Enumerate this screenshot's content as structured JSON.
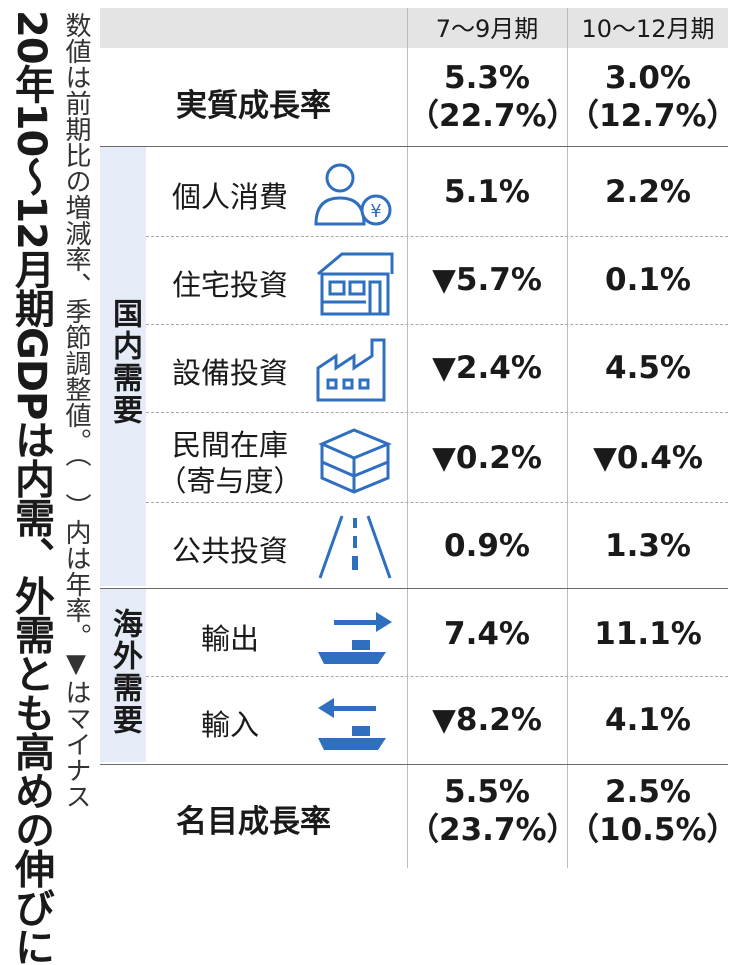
{
  "title": "20年10～12月期GDPは内需、外需とも高めの伸びに",
  "note": "数値は前期比の増減率、季節調整値。（　）内は年率。▼はマイナス",
  "columns": [
    "7～9月期",
    "10～12月期"
  ],
  "real_growth": {
    "label": "実質成長率",
    "q3": "5.3%",
    "q3_annual": "（22.7%）",
    "q4": "3.0%",
    "q4_annual": "（12.7%）"
  },
  "domestic": {
    "group_label": "国内需要",
    "rows": [
      {
        "label": "個人消費",
        "q3": "5.1%",
        "q4": "2.2%",
        "icon": "person-yen-icon"
      },
      {
        "label": "住宅投資",
        "q3": "▼5.7%",
        "q4": "0.1%",
        "icon": "house-icon"
      },
      {
        "label": "設備投資",
        "q3": "▼2.4%",
        "q4": "4.5%",
        "icon": "factory-icon"
      },
      {
        "label": "民間在庫",
        "label2": "（寄与度）",
        "q3": "▼0.2%",
        "q4": "▼0.4%",
        "icon": "boxes-icon"
      },
      {
        "label": "公共投資",
        "q3": "0.9%",
        "q4": "1.3%",
        "icon": "road-icon"
      }
    ]
  },
  "overseas": {
    "group_label": "海外需要",
    "rows": [
      {
        "label": "輸出",
        "q3": "7.4%",
        "q4": "11.1%",
        "icon": "ship-export-icon"
      },
      {
        "label": "輸入",
        "q3": "▼8.2%",
        "q4": "4.1%",
        "icon": "ship-import-icon"
      }
    ]
  },
  "nominal_growth": {
    "label": "名目成長率",
    "q3": "5.5%",
    "q3_annual": "（23.7%）",
    "q4": "2.5%",
    "q4_annual": "（10.5%）"
  },
  "colors": {
    "accent": "#2f6fc0",
    "sidebar": "#e6ecf7",
    "header": "#e4e4e4"
  }
}
